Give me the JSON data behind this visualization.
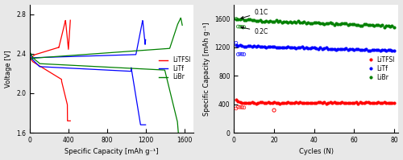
{
  "left_plot": {
    "xlabel": "Specific Capacity [mAh g⁻¹]",
    "ylabel": "Voltage [V]",
    "xlim": [
      0,
      1700
    ],
    "ylim": [
      1.6,
      2.9
    ],
    "xticks": [
      0,
      400,
      800,
      1200,
      1600
    ],
    "yticks": [
      1.6,
      2.0,
      2.4,
      2.8
    ],
    "legend_labels": [
      "LiTFSI",
      "LiTf",
      "LiBr"
    ],
    "legend_colors": [
      "red",
      "blue",
      "green"
    ]
  },
  "right_plot": {
    "xlabel": "Cycles (N)",
    "ylabel": "Specific Capacity [mAh g⁻¹]",
    "xlim": [
      0,
      82
    ],
    "ylim": [
      0,
      1800
    ],
    "xticks": [
      0,
      20,
      40,
      60,
      80
    ],
    "yticks": [
      0,
      400,
      800,
      1200,
      1600
    ],
    "legend_labels": [
      "LiTFSI",
      "LiTf",
      "LiBr"
    ],
    "annotation_01C": "0.1C",
    "annotation_02C": "0.2C"
  },
  "bg_color": "#e8e8e8",
  "plot_bg": "#ffffff"
}
